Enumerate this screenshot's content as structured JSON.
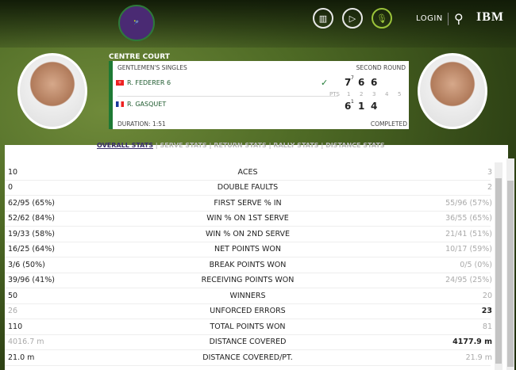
{
  "header": {
    "logo_text": "THE CHAMPIONSHIPS WIMBLEDON",
    "icons": [
      "draw-icon",
      "play-icon",
      "microphone-icon"
    ],
    "login": "LOGIN",
    "brand": "IBM"
  },
  "match": {
    "court": "CENTRE COURT",
    "event": "GENTLEMEN'S SINGLES",
    "round": "SECOND ROUND",
    "duration": "DURATION: 1:51",
    "status": "COMPLETED",
    "pts_label": "PTS",
    "set_numbers": [
      "1",
      "2",
      "3",
      "4",
      "5"
    ],
    "players": [
      {
        "name": "R. FEDERER 6",
        "flag": "switzerland",
        "winner": true,
        "sets": [
          "7",
          "6",
          "6"
        ],
        "tiebreak": "7"
      },
      {
        "name": "R. GASQUET",
        "flag": "france",
        "winner": false,
        "sets": [
          "6",
          "1",
          "4"
        ],
        "tiebreak": "1"
      }
    ]
  },
  "tabs": [
    "OVERALL STATS",
    "SERVE STATS",
    "RETURN STATS",
    "RALLY STATS",
    "DISTANCE STATS"
  ],
  "stats": [
    {
      "label": "ACES",
      "p1": "10",
      "p2": "3",
      "lead": "p1"
    },
    {
      "label": "DOUBLE FAULTS",
      "p1": "0",
      "p2": "2",
      "lead": "p1"
    },
    {
      "label": "FIRST SERVE % IN",
      "p1": "62/95 (65%)",
      "p2": "55/96 (57%)",
      "lead": "p1"
    },
    {
      "label": "WIN % ON 1ST SERVE",
      "p1": "52/62 (84%)",
      "p2": "36/55 (65%)",
      "lead": "p1"
    },
    {
      "label": "WIN % ON 2ND SERVE",
      "p1": "19/33 (58%)",
      "p2": "21/41 (51%)",
      "lead": "p1"
    },
    {
      "label": "NET POINTS WON",
      "p1": "16/25 (64%)",
      "p2": "10/17 (59%)",
      "lead": "p1"
    },
    {
      "label": "BREAK POINTS WON",
      "p1": "3/6 (50%)",
      "p2": "0/5 (0%)",
      "lead": "p1"
    },
    {
      "label": "RECEIVING POINTS WON",
      "p1": "39/96 (41%)",
      "p2": "24/95 (25%)",
      "lead": "p1"
    },
    {
      "label": "WINNERS",
      "p1": "50",
      "p2": "20",
      "lead": "p1"
    },
    {
      "label": "UNFORCED ERRORS",
      "p1": "26",
      "p2": "23",
      "lead": "p2"
    },
    {
      "label": "TOTAL POINTS WON",
      "p1": "110",
      "p2": "81",
      "lead": "p1"
    },
    {
      "label": "DISTANCE COVERED",
      "p1": "4016.7 m",
      "p2": "4177.9 m",
      "lead": "p2"
    },
    {
      "label": "DISTANCE COVERED/PT.",
      "p1": "21.0 m",
      "p2": "21.9 m",
      "lead": "p1"
    }
  ]
}
